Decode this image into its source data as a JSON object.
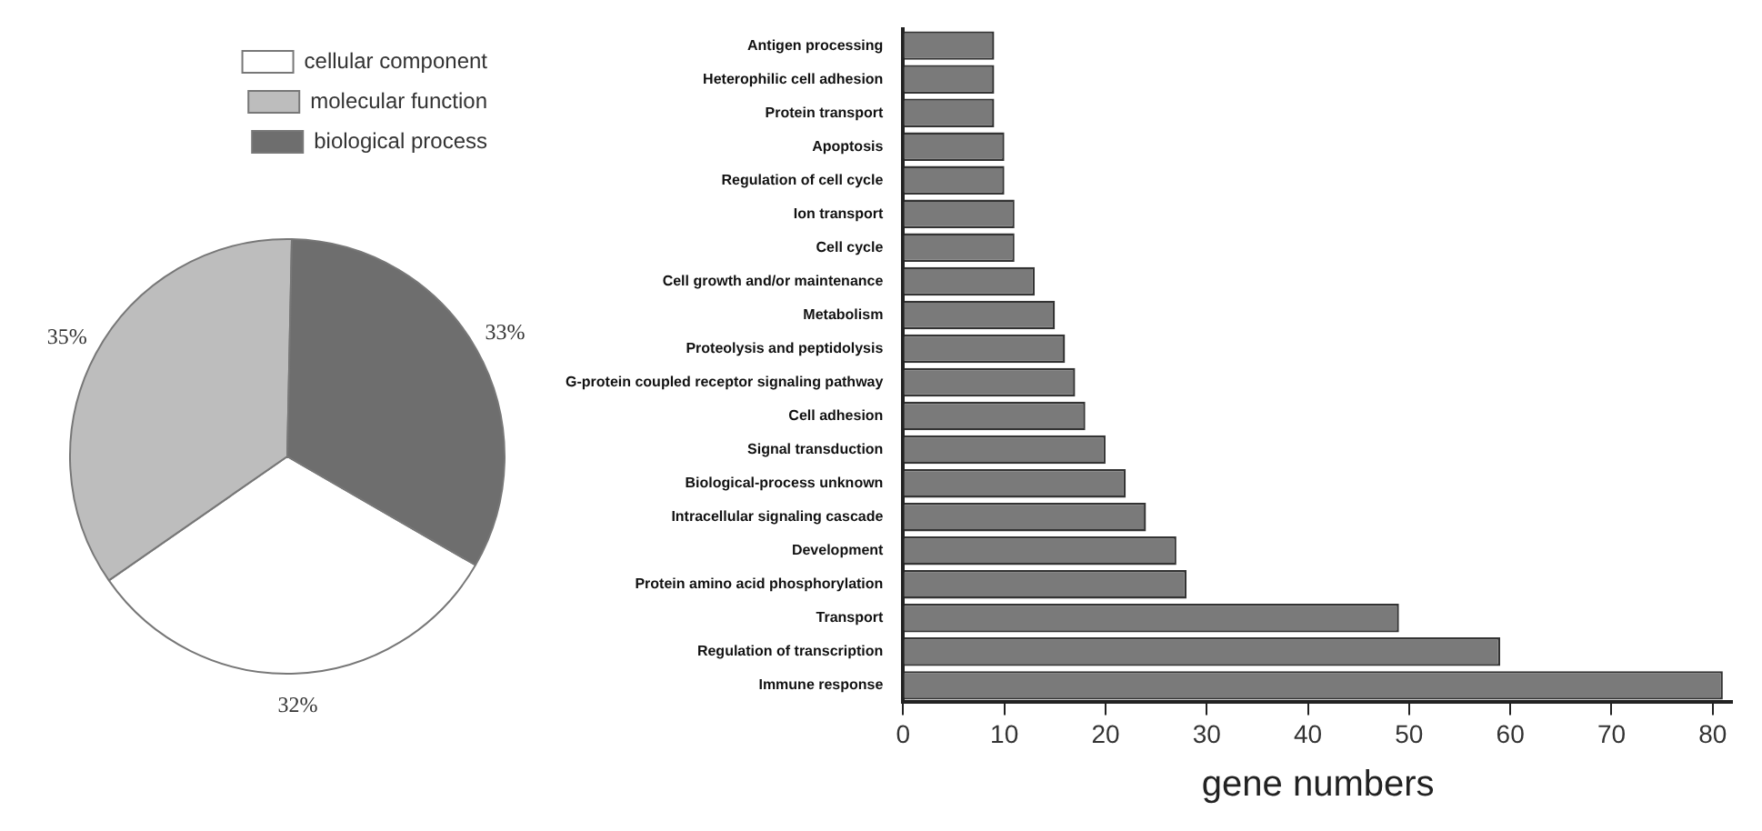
{
  "chart_data": [
    {
      "type": "pie",
      "categories": [
        "cellular component",
        "molecular function",
        "biological process"
      ],
      "values": [
        32,
        35,
        33
      ],
      "colors": [
        "#ffffff",
        "#bdbdbd",
        "#6e6e6e"
      ],
      "value_labels": [
        "32%",
        "35%",
        "33%"
      ],
      "legend": "top right"
    },
    {
      "type": "bar",
      "orientation": "horizontal",
      "xlabel": "gene numbers",
      "categories": [
        "Antigen processing",
        "Heterophilic cell adhesion",
        "Protein transport",
        "Apoptosis",
        "Regulation of cell cycle",
        "Ion transport",
        "Cell cycle",
        "Cell growth and/or maintenance",
        "Metabolism",
        "Proteolysis and peptidolysis",
        "G-protein coupled receptor signaling pathway",
        "Cell adhesion",
        "Signal transduction",
        "Biological-process unknown",
        "Intracellular signaling cascade",
        "Development",
        "Protein amino acid phosphorylation",
        "Transport",
        "Regulation of transcription",
        "Immune response"
      ],
      "values": [
        9,
        9,
        9,
        10,
        10,
        11,
        11,
        13,
        15,
        16,
        17,
        18,
        20,
        22,
        24,
        27,
        28,
        49,
        59,
        81
      ],
      "color": "#7a7a7a",
      "xlim": [
        0,
        82
      ],
      "xticks": [
        0,
        10,
        20,
        30,
        40,
        50,
        60,
        70,
        80
      ],
      "grid": false,
      "legend": false
    }
  ]
}
